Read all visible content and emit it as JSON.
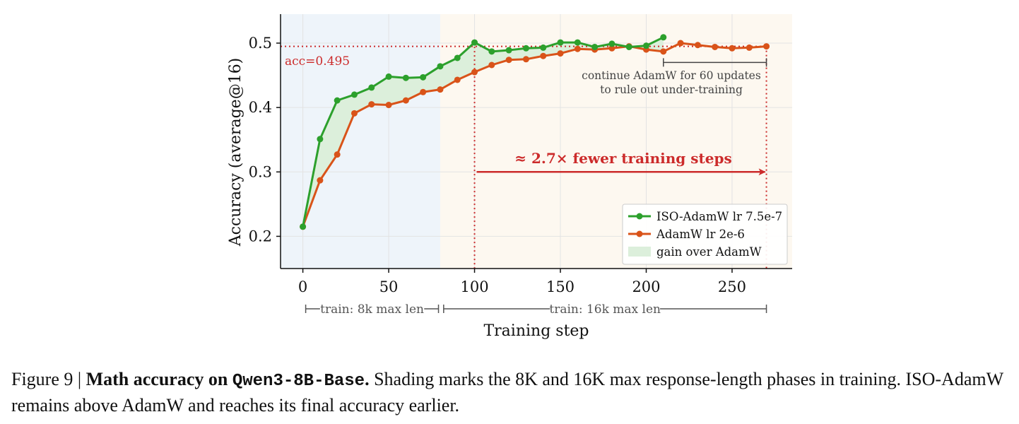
{
  "chart_data": {
    "type": "line",
    "xlabel": "Training step",
    "ylabel": "Accuracy (average@16)",
    "xlim": [
      -13,
      285
    ],
    "ylim": [
      0.15,
      0.545
    ],
    "xticks": [
      0,
      50,
      100,
      150,
      200,
      250
    ],
    "yticks": [
      0.2,
      0.3,
      0.4,
      0.5
    ],
    "xtick_labels": [
      "0",
      "50",
      "100",
      "150",
      "200",
      "250"
    ],
    "ytick_labels": [
      "0.2",
      "0.3",
      "0.4",
      "0.5"
    ],
    "grid": true,
    "legend_position": "bottom-right",
    "colors": {
      "iso": "#2ca02c",
      "adamw": "#d95319",
      "gain": "#dcefdb",
      "annot": "#cc2b2b",
      "phase1": "#eef4fa",
      "phase2": "#fdf8f0"
    },
    "series": [
      {
        "name": "ISO-AdamW lr 7.5e-7",
        "x": [
          0,
          10,
          20,
          30,
          40,
          50,
          60,
          70,
          80,
          90,
          100,
          110,
          120,
          130,
          140,
          150,
          160,
          170,
          180,
          190,
          200,
          210
        ],
        "values": [
          0.215,
          0.351,
          0.411,
          0.42,
          0.431,
          0.448,
          0.446,
          0.447,
          0.464,
          0.477,
          0.501,
          0.487,
          0.489,
          0.492,
          0.493,
          0.501,
          0.501,
          0.494,
          0.499,
          0.494,
          0.496,
          0.509
        ]
      },
      {
        "name": "AdamW lr 2e-6",
        "x": [
          0,
          10,
          20,
          30,
          40,
          50,
          60,
          70,
          80,
          90,
          100,
          110,
          120,
          130,
          140,
          150,
          160,
          170,
          180,
          190,
          200,
          210,
          220,
          230,
          240,
          250,
          260,
          270
        ],
        "values": [
          0.215,
          0.287,
          0.327,
          0.391,
          0.405,
          0.404,
          0.411,
          0.424,
          0.428,
          0.443,
          0.455,
          0.466,
          0.474,
          0.475,
          0.48,
          0.484,
          0.491,
          0.49,
          0.492,
          0.495,
          0.49,
          0.487,
          0.5,
          0.497,
          0.494,
          0.492,
          0.493,
          0.495
        ]
      }
    ],
    "legend_gain_label": "gain over AdamW",
    "phases": [
      {
        "label": "train: 8k max len",
        "x_start": 0,
        "x_end": 79
      },
      {
        "label": "train: 16k max len",
        "x_start": 82,
        "x_end": 270
      }
    ],
    "annotations": {
      "acc_label": "acc=0.495",
      "acc_value": 0.495,
      "vline1_x": 100,
      "vline2_x": 270,
      "fewer_steps_text": "≈ 2.7× fewer training steps",
      "fewer_steps_y": 0.3,
      "continue_text_1": "continue AdamW for 60 updates",
      "continue_text_2": "to rule out under-training",
      "continue_x_start": 210,
      "continue_x_end": 270,
      "continue_y": 0.47
    }
  },
  "caption": {
    "prefix": "Figure 9 | ",
    "bold": "Math accuracy on ",
    "model": "Qwen3-8B-Base",
    "bold_end": ".",
    "text": " Shading marks the 8K and 16K max response-length phases in training. ISO-AdamW remains above AdamW and reaches its final accuracy earlier."
  }
}
